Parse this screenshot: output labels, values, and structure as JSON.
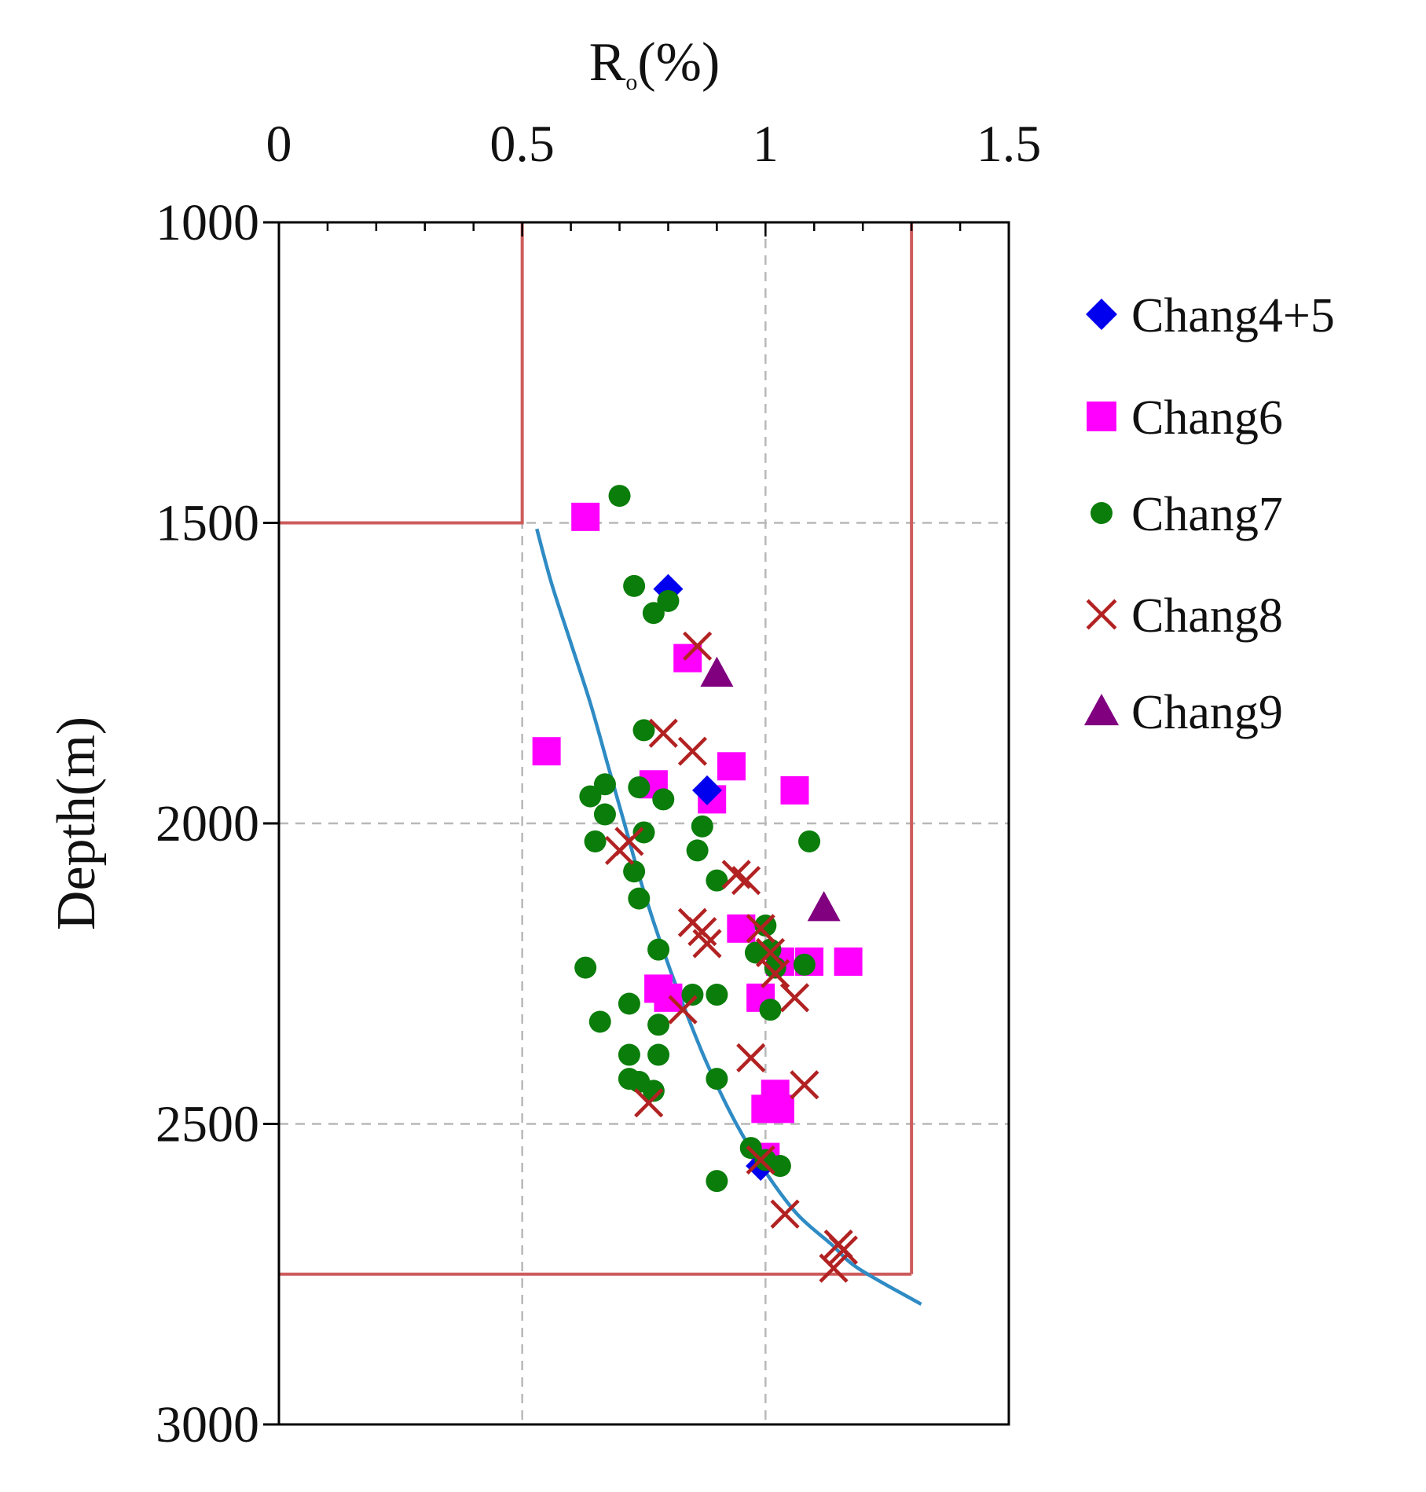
{
  "chart_data": {
    "type": "scatter",
    "title": "",
    "x_axis": {
      "label_main": "R",
      "label_sub": "o",
      "label_tail": "(%)",
      "position": "top",
      "range": [
        0,
        1.5
      ],
      "ticks": [
        0,
        0.5,
        1,
        1.5
      ],
      "tick_labels": [
        "0",
        "0.5",
        "1",
        "1.5"
      ],
      "minor_step": 0.1
    },
    "y_axis": {
      "label": "Depth(m)",
      "range": [
        1000,
        3000
      ],
      "inverted": true,
      "ticks": [
        1000,
        1500,
        2000,
        2500,
        3000
      ],
      "tick_labels": [
        "1000",
        "1500",
        "2000",
        "2500",
        "3000"
      ]
    },
    "grid": true,
    "grid_x": [
      0.5,
      1
    ],
    "grid_y": [
      1500,
      2000,
      2500
    ],
    "legend_position": "right",
    "series": [
      {
        "name": "Chang4+5",
        "marker": "diamond",
        "color": "#0000ee",
        "points": [
          [
            0.8,
            1610
          ],
          [
            0.88,
            1945
          ],
          [
            0.99,
            2570
          ]
        ]
      },
      {
        "name": "Chang6",
        "marker": "square",
        "color": "#ff00ff",
        "points": [
          [
            0.63,
            1490
          ],
          [
            0.84,
            1725
          ],
          [
            0.55,
            1880
          ],
          [
            0.77,
            1935
          ],
          [
            0.93,
            1905
          ],
          [
            0.89,
            1960
          ],
          [
            1.06,
            1945
          ],
          [
            0.95,
            2175
          ],
          [
            1.03,
            2230
          ],
          [
            1.09,
            2230
          ],
          [
            1.17,
            2230
          ],
          [
            0.78,
            2275
          ],
          [
            0.8,
            2290
          ],
          [
            0.99,
            2290
          ],
          [
            1.02,
            2450
          ],
          [
            1.0,
            2475
          ],
          [
            1.03,
            2475
          ],
          [
            1.0,
            2555
          ]
        ]
      },
      {
        "name": "Chang7",
        "marker": "circle",
        "color": "#0a7d0a",
        "points": [
          [
            0.7,
            1455
          ],
          [
            0.73,
            1605
          ],
          [
            0.8,
            1630
          ],
          [
            0.77,
            1650
          ],
          [
            0.75,
            1845
          ],
          [
            0.67,
            1935
          ],
          [
            0.74,
            1940
          ],
          [
            0.64,
            1955
          ],
          [
            0.79,
            1960
          ],
          [
            0.67,
            1985
          ],
          [
            0.75,
            2015
          ],
          [
            0.87,
            2005
          ],
          [
            0.65,
            2030
          ],
          [
            1.09,
            2030
          ],
          [
            0.86,
            2045
          ],
          [
            0.73,
            2080
          ],
          [
            0.9,
            2095
          ],
          [
            0.74,
            2125
          ],
          [
            1.0,
            2170
          ],
          [
            0.78,
            2210
          ],
          [
            0.98,
            2215
          ],
          [
            1.01,
            2210
          ],
          [
            0.63,
            2240
          ],
          [
            1.02,
            2240
          ],
          [
            1.08,
            2235
          ],
          [
            0.85,
            2285
          ],
          [
            0.9,
            2285
          ],
          [
            0.72,
            2300
          ],
          [
            1.01,
            2310
          ],
          [
            0.66,
            2330
          ],
          [
            0.78,
            2335
          ],
          [
            0.72,
            2385
          ],
          [
            0.78,
            2385
          ],
          [
            0.72,
            2425
          ],
          [
            0.74,
            2430
          ],
          [
            0.77,
            2445
          ],
          [
            0.9,
            2425
          ],
          [
            0.97,
            2540
          ],
          [
            1.0,
            2560
          ],
          [
            1.03,
            2570
          ],
          [
            0.9,
            2595
          ]
        ]
      },
      {
        "name": "Chang8",
        "marker": "x",
        "color": "#b22222",
        "points": [
          [
            0.86,
            1705
          ],
          [
            0.79,
            1850
          ],
          [
            0.85,
            1880
          ],
          [
            0.72,
            2030
          ],
          [
            0.7,
            2045
          ],
          [
            0.94,
            2085
          ],
          [
            0.96,
            2095
          ],
          [
            0.85,
            2165
          ],
          [
            0.87,
            2180
          ],
          [
            0.88,
            2200
          ],
          [
            0.99,
            2175
          ],
          [
            1.01,
            2215
          ],
          [
            1.02,
            2250
          ],
          [
            1.06,
            2290
          ],
          [
            0.83,
            2310
          ],
          [
            0.97,
            2390
          ],
          [
            1.08,
            2435
          ],
          [
            0.76,
            2465
          ],
          [
            0.99,
            2560
          ],
          [
            1.04,
            2650
          ],
          [
            1.15,
            2700
          ],
          [
            1.16,
            2710
          ],
          [
            1.14,
            2740
          ]
        ]
      },
      {
        "name": "Chang9",
        "marker": "triangle",
        "color": "#800080",
        "points": [
          [
            0.9,
            1750
          ],
          [
            1.12,
            2140
          ]
        ]
      }
    ],
    "trend_curve": {
      "color": "#2f8bc4",
      "points": [
        [
          0.53,
          1510
        ],
        [
          0.56,
          1600
        ],
        [
          0.6,
          1700
        ],
        [
          0.64,
          1800
        ],
        [
          0.675,
          1900
        ],
        [
          0.71,
          2000
        ],
        [
          0.745,
          2100
        ],
        [
          0.785,
          2200
        ],
        [
          0.83,
          2300
        ],
        [
          0.88,
          2400
        ],
        [
          0.94,
          2500
        ],
        [
          1.0,
          2580
        ],
        [
          1.065,
          2650
        ],
        [
          1.135,
          2700
        ],
        [
          1.19,
          2740
        ],
        [
          1.32,
          2800
        ]
      ]
    },
    "zone_boundaries": {
      "color": "#cd5c5c",
      "upper_depth": 1500,
      "lower_depth": 2750,
      "left_ro": 0.5,
      "right_ro": 1.3
    }
  }
}
